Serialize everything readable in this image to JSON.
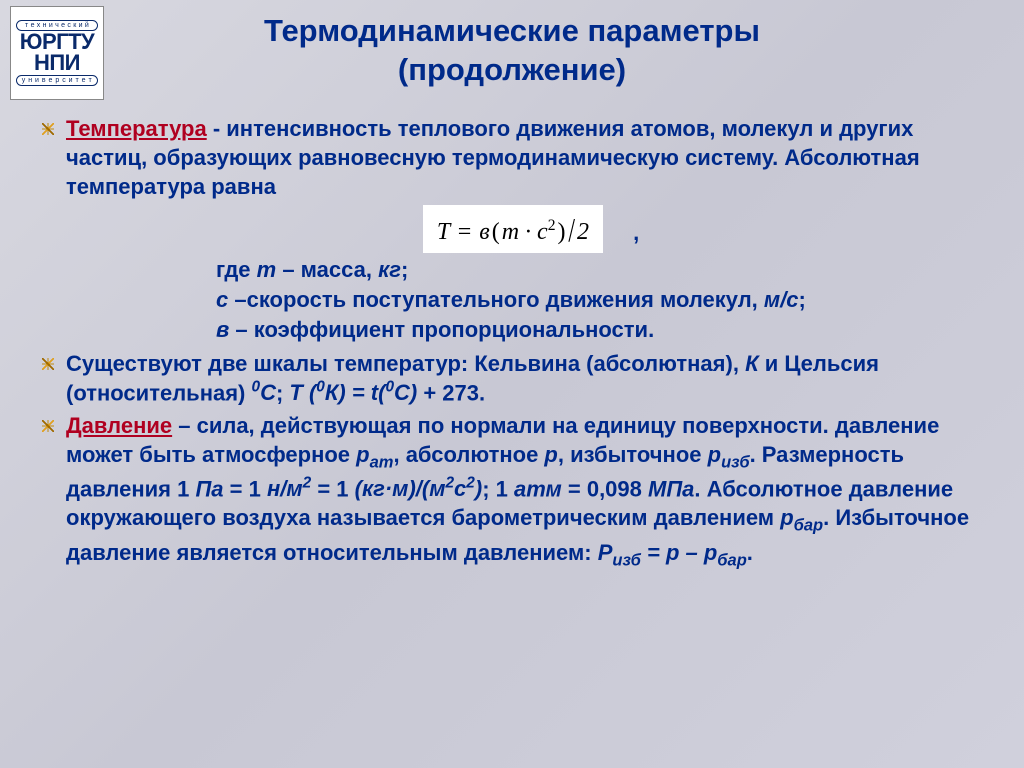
{
  "colors": {
    "text": "#002a8a",
    "term": "#b00020",
    "bg_from": "#d8d8e0",
    "bg_to": "#d0d0dc",
    "logo": "#0a2a6a",
    "formula_bg": "#ffffff"
  },
  "typography": {
    "title_fontsize": 31,
    "body_fontsize": 22,
    "formula_fontsize": 24,
    "body_weight": "bold",
    "family": "Arial"
  },
  "logo": {
    "top": "т е х н и ч е с к и й",
    "line1": "ЮРГТУ",
    "line2": "НПИ",
    "bottom": "у н и в е р с и т е т"
  },
  "title": {
    "line1": "Термодинамические параметры",
    "line2": "(продолжение)"
  },
  "bullets": {
    "b1_term": "Температура",
    "b1_rest": " - интенсивность теплового движения атомов, молекул и других частиц, образующих равновесную термодинамическую систему. Абсолютная температура равна",
    "formula_html": "T <span class=\"op\">=</span> в<span class=\"op\">(</span>m · c<sup>2</sup><span class=\"op\">)</span><span class=\"sl\">/</span>2",
    "comma": ",",
    "sub1_pre": "где ",
    "sub1_var": "m",
    "sub1_rest": " – масса, ",
    "sub1_unit": "кг",
    "sub1_end": ";",
    "sub2_var": "c",
    "sub2_rest": " –скорость поступательного движения молекул, ",
    "sub2_unit": "м/с",
    "sub2_end": ";",
    "sub3_var": "в",
    "sub3_rest": " – коэффициент пропорциональности.",
    "b2_a": "Существуют две шкалы температур: Кельвина (абсолютная),  ",
    "b2_k": "К",
    "b2_b": " и Цельсия (относительная) ",
    "b2_c": "0",
    "b2_d": "С",
    "b2_e": "; ",
    "b2_f": "Т (",
    "b2_g": "0",
    "b2_h": "К) = t(",
    "b2_i": "0",
    "b2_j": "С)",
    "b2_k2": " + 273.",
    "b3_term": "Давление",
    "b3_a": " – сила, действующая по нормали на единицу поверхности. давление может быть атмосферное ",
    "b3_pat": "р",
    "b3_pat_s": "ат",
    "b3_b": ", абсолютное ",
    "b3_p": "р",
    "b3_c": ", избыточное ",
    "b3_pizb": "р",
    "b3_pizb_s": "изб",
    "b3_d": ". Размерность давления 1 ",
    "b3_pa": "Па",
    "b3_e": " = 1 ",
    "b3_nm": "н/м",
    "b3_nm2": "2",
    "b3_f": " = 1 ",
    "b3_kg": "(кг·м)/(м",
    "b3_kg2": "2",
    "b3_s": "с",
    "b3_s2": "2",
    "b3_kgend": ")",
    "b3_g": "; 1 ",
    "b3_atm": "атм",
    "b3_h": " = 0,098 ",
    "b3_mpa": "МПа",
    "b3_i": ". Абсолютное давление окружающего воздуха называется барометрическим давлением ",
    "b3_pbar": "р",
    "b3_pbar_s": "бар",
    "b3_j": ". Избыточное давление является относительным давлением:     ",
    "b3_eq1": "Р",
    "b3_eq1s": "изб",
    "b3_eq2": " = р – р",
    "b3_eq2s": "бар",
    "b3_eq3": "."
  }
}
